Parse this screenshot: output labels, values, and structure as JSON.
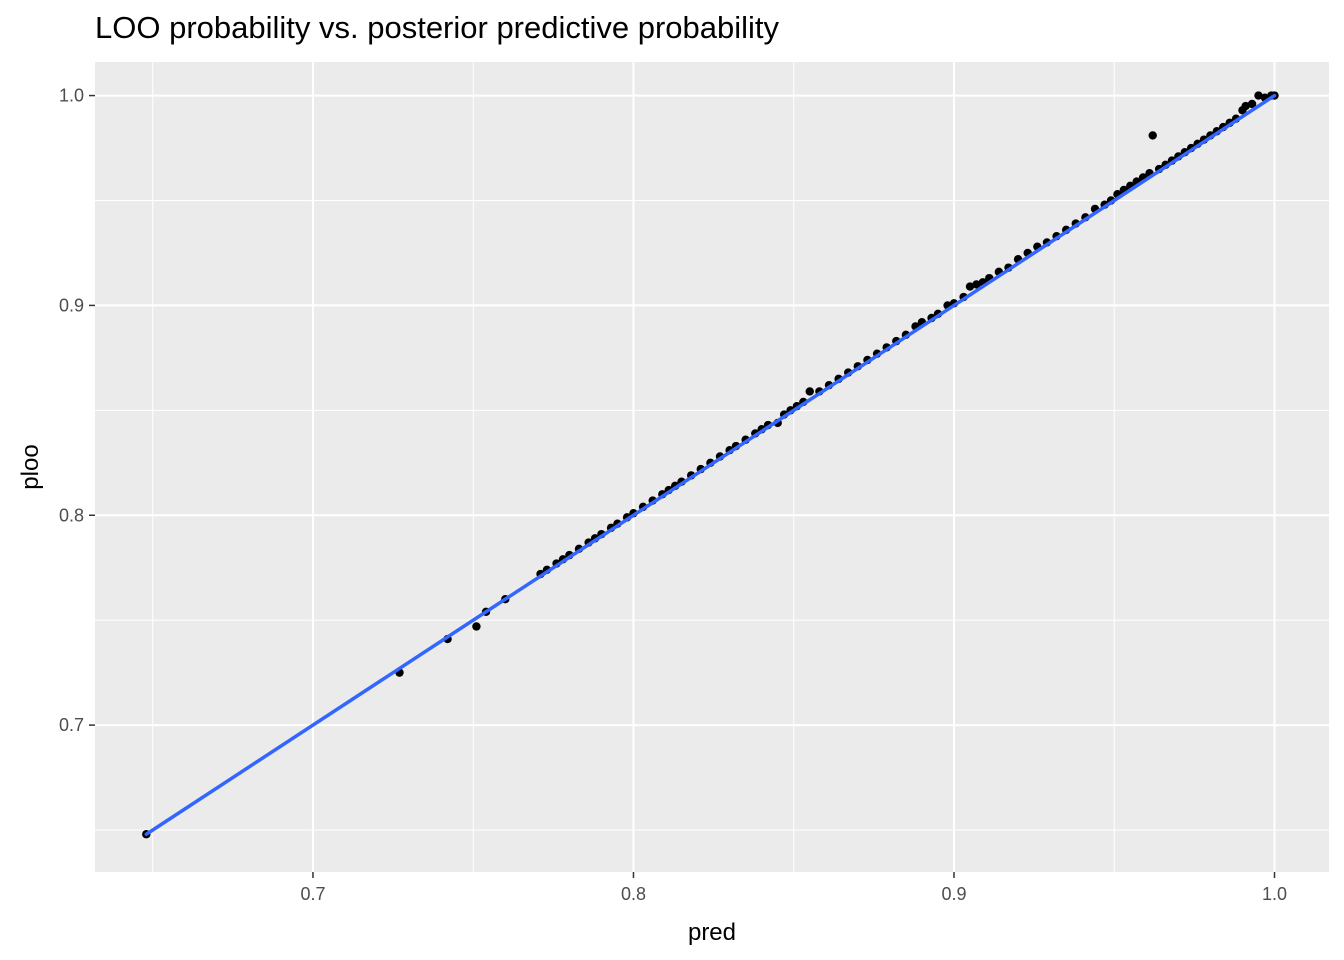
{
  "chart_data": {
    "type": "scatter",
    "title": "LOO probability vs. posterior predictive probability",
    "xlabel": "pred",
    "ylabel": "ploo",
    "xlim": [
      0.632,
      1.017
    ],
    "ylim": [
      0.63,
      1.016
    ],
    "x_ticks": [
      0.7,
      0.8,
      0.9,
      1.0
    ],
    "x_tick_labels": [
      "0.7",
      "0.8",
      "0.9",
      "1.0"
    ],
    "y_ticks": [
      0.7,
      0.8,
      0.9,
      1.0
    ],
    "y_tick_labels": [
      "0.7",
      "0.8",
      "0.9",
      "1.0"
    ],
    "grid": true,
    "legend": "none",
    "colors": {
      "panel": "#ebebeb",
      "grid": "#ffffff",
      "points": "#000000",
      "fit_line": "#3366ff"
    },
    "series": [
      {
        "kind": "points",
        "x": [
          0.648,
          0.727,
          0.742,
          0.751,
          0.754,
          0.76,
          0.771,
          0.773,
          0.776,
          0.778,
          0.78,
          0.783,
          0.786,
          0.788,
          0.79,
          0.793,
          0.795,
          0.798,
          0.8,
          0.803,
          0.806,
          0.809,
          0.811,
          0.813,
          0.815,
          0.818,
          0.821,
          0.824,
          0.827,
          0.83,
          0.832,
          0.835,
          0.838,
          0.84,
          0.842,
          0.845,
          0.847,
          0.849,
          0.851,
          0.853,
          0.855,
          0.858,
          0.861,
          0.864,
          0.867,
          0.87,
          0.873,
          0.876,
          0.879,
          0.882,
          0.885,
          0.888,
          0.89,
          0.893,
          0.895,
          0.898,
          0.9,
          0.903,
          0.905,
          0.907,
          0.909,
          0.911,
          0.914,
          0.917,
          0.92,
          0.923,
          0.926,
          0.929,
          0.932,
          0.935,
          0.938,
          0.941,
          0.944,
          0.947,
          0.949,
          0.951,
          0.953,
          0.955,
          0.957,
          0.959,
          0.961,
          0.962,
          0.964,
          0.966,
          0.968,
          0.97,
          0.972,
          0.974,
          0.976,
          0.978,
          0.98,
          0.982,
          0.984,
          0.986,
          0.988,
          0.99,
          0.991,
          0.993,
          0.995,
          0.997,
          0.999,
          1.0
        ],
        "y": [
          0.648,
          0.725,
          0.741,
          0.747,
          0.754,
          0.76,
          0.772,
          0.774,
          0.777,
          0.779,
          0.781,
          0.784,
          0.787,
          0.789,
          0.791,
          0.794,
          0.796,
          0.799,
          0.801,
          0.804,
          0.807,
          0.81,
          0.812,
          0.814,
          0.816,
          0.819,
          0.822,
          0.825,
          0.828,
          0.831,
          0.833,
          0.836,
          0.839,
          0.841,
          0.843,
          0.844,
          0.848,
          0.85,
          0.852,
          0.854,
          0.859,
          0.859,
          0.862,
          0.865,
          0.868,
          0.871,
          0.874,
          0.877,
          0.88,
          0.883,
          0.886,
          0.89,
          0.892,
          0.894,
          0.896,
          0.9,
          0.901,
          0.904,
          0.909,
          0.91,
          0.911,
          0.913,
          0.916,
          0.918,
          0.922,
          0.925,
          0.928,
          0.93,
          0.933,
          0.936,
          0.939,
          0.942,
          0.946,
          0.948,
          0.95,
          0.953,
          0.955,
          0.957,
          0.959,
          0.961,
          0.963,
          0.981,
          0.965,
          0.967,
          0.969,
          0.971,
          0.973,
          0.975,
          0.977,
          0.979,
          0.981,
          0.983,
          0.985,
          0.987,
          0.989,
          0.993,
          0.995,
          0.996,
          1.0,
          0.999,
          1.0,
          1.0
        ]
      },
      {
        "kind": "line",
        "x": [
          0.648,
          1.0
        ],
        "y": [
          0.648,
          1.0
        ]
      }
    ]
  }
}
